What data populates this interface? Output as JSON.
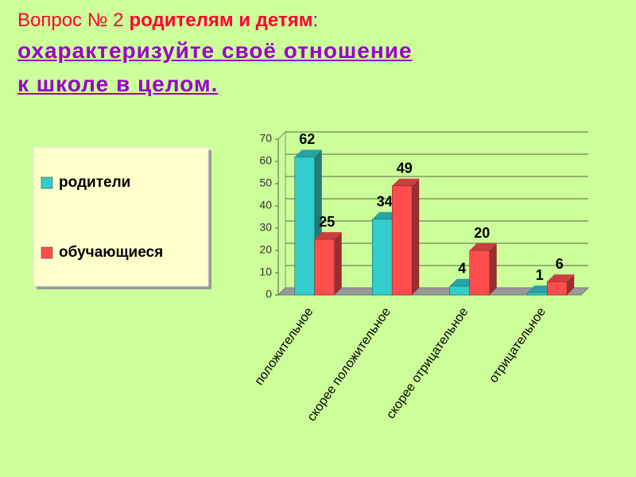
{
  "chart_data": {
    "type": "bar3d",
    "title_parts": [
      "Вопрос № 2",
      "родителям и детям",
      ":"
    ],
    "subtitle": [
      "охарактеризуйте своё отношение",
      "к школе в целом."
    ],
    "categories": [
      "положительное",
      "скорее положительное",
      "скорее отрицательное",
      "отрицательное"
    ],
    "series": [
      {
        "name": "родители",
        "color": "#33cccc",
        "values": [
          62,
          34,
          4,
          1
        ]
      },
      {
        "name": "обучающиеся",
        "color": "#ff4d4d",
        "values": [
          25,
          49,
          20,
          6
        ]
      }
    ],
    "ylim": [
      0,
      70
    ],
    "yticks": [
      0,
      10,
      20,
      30,
      40,
      50,
      60,
      70
    ],
    "grid": true,
    "legend": "left"
  }
}
